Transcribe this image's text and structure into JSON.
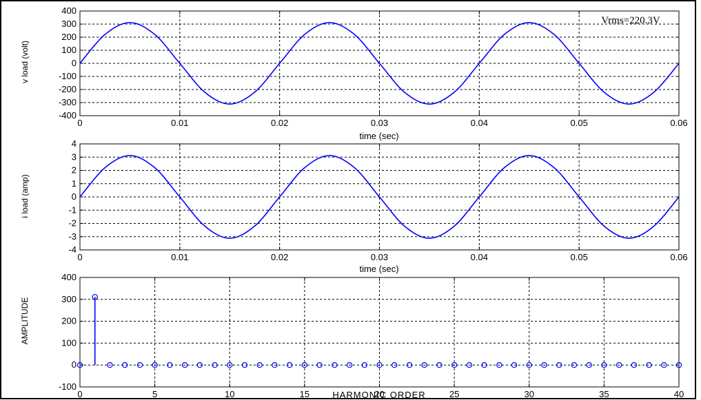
{
  "figure": {
    "background": "#ffffff",
    "axes_color": "#000000",
    "line_color": "#0000ff",
    "grid_color": "#000000"
  },
  "chart_data": [
    {
      "type": "line",
      "title": "",
      "xlabel": "time (sec)",
      "ylabel": "v load (volt)",
      "xlim": [
        0,
        0.06
      ],
      "ylim": [
        -400,
        400
      ],
      "xticks": [
        0,
        0.01,
        0.02,
        0.03,
        0.04,
        0.05,
        0.06
      ],
      "xtick_labels": [
        "0",
        "0.01",
        "0.02",
        "0.03",
        "0.04",
        "0.05",
        "0.06"
      ],
      "yticks": [
        -400,
        -300,
        -200,
        -100,
        0,
        100,
        200,
        300,
        400
      ],
      "ytick_labels": [
        "-400",
        "-300",
        "-200",
        "-100",
        "0",
        "100",
        "200",
        "300",
        "400"
      ],
      "grid": true,
      "series": [
        {
          "x": [
            0,
            0.0025,
            0.005,
            0.0075,
            0.01,
            0.0125,
            0.015,
            0.0175,
            0.02,
            0.0225,
            0.025,
            0.0275,
            0.03,
            0.0325,
            0.035,
            0.0375,
            0.04,
            0.0425,
            0.045,
            0.0475,
            0.05,
            0.0525,
            0.055,
            0.0575,
            0.06
          ],
          "y": [
            0,
            220.3,
            311.5,
            220.3,
            0,
            -220.3,
            -311.5,
            -220.3,
            0,
            220.3,
            311.5,
            220.3,
            0,
            -220.3,
            -311.5,
            -220.3,
            0,
            220.3,
            311.5,
            220.3,
            0,
            -220.3,
            -311.5,
            -220.3,
            0
          ]
        }
      ],
      "annotation": {
        "text": "Vrms=220.3V",
        "color": "#ff0000"
      }
    },
    {
      "type": "line",
      "title": "",
      "xlabel": "time (sec)",
      "ylabel": "i load (amp)",
      "xlim": [
        0,
        0.06
      ],
      "ylim": [
        -4,
        4
      ],
      "xticks": [
        0,
        0.01,
        0.02,
        0.03,
        0.04,
        0.05,
        0.06
      ],
      "xtick_labels": [
        "0",
        "0.01",
        "0.02",
        "0.03",
        "0.04",
        "0.05",
        "0.06"
      ],
      "yticks": [
        -4,
        -3,
        -2,
        -1,
        0,
        1,
        2,
        3,
        4
      ],
      "ytick_labels": [
        "-4",
        "-3",
        "-2",
        "-1",
        "0",
        "1",
        "2",
        "3",
        "4"
      ],
      "grid": true,
      "series": [
        {
          "x": [
            0,
            0.0025,
            0.005,
            0.0075,
            0.01,
            0.0125,
            0.015,
            0.0175,
            0.02,
            0.0225,
            0.025,
            0.0275,
            0.03,
            0.0325,
            0.035,
            0.0375,
            0.04,
            0.0425,
            0.045,
            0.0475,
            0.05,
            0.0525,
            0.055,
            0.0575,
            0.06
          ],
          "y": [
            0,
            2.2,
            3.12,
            2.2,
            0,
            -2.2,
            -3.12,
            -2.2,
            0,
            2.2,
            3.12,
            2.2,
            0,
            -2.2,
            -3.12,
            -2.2,
            0,
            2.2,
            3.12,
            2.2,
            0,
            -2.2,
            -3.12,
            -2.2,
            0
          ]
        }
      ]
    },
    {
      "type": "stem",
      "title": "",
      "xlabel": "HARMONIC ORDER",
      "ylabel": "AMPLITUDE",
      "xlim": [
        0,
        40
      ],
      "ylim": [
        -100,
        400
      ],
      "xticks": [
        0,
        5,
        10,
        15,
        20,
        25,
        30,
        35,
        40
      ],
      "xtick_labels": [
        "0",
        "5",
        "10",
        "15",
        "20",
        "25",
        "30",
        "35",
        "40"
      ],
      "yticks": [
        -100,
        0,
        100,
        200,
        300,
        400
      ],
      "ytick_labels": [
        "-100",
        "0",
        "100",
        "200",
        "300",
        "400"
      ],
      "grid": true,
      "x": [
        0,
        1,
        2,
        3,
        4,
        5,
        6,
        7,
        8,
        9,
        10,
        11,
        12,
        13,
        14,
        15,
        16,
        17,
        18,
        19,
        20,
        21,
        22,
        23,
        24,
        25,
        26,
        27,
        28,
        29,
        30,
        31,
        32,
        33,
        34,
        35,
        36,
        37,
        38,
        39,
        40
      ],
      "values": [
        0,
        311,
        0,
        0,
        0,
        0,
        0,
        0,
        0,
        0,
        0,
        0,
        0,
        0,
        0,
        0,
        0,
        0,
        0,
        0,
        0,
        0,
        0,
        0,
        0,
        0,
        0,
        0,
        0,
        0,
        0,
        0,
        0,
        0,
        0,
        0,
        0,
        0,
        0,
        0,
        0
      ]
    }
  ]
}
